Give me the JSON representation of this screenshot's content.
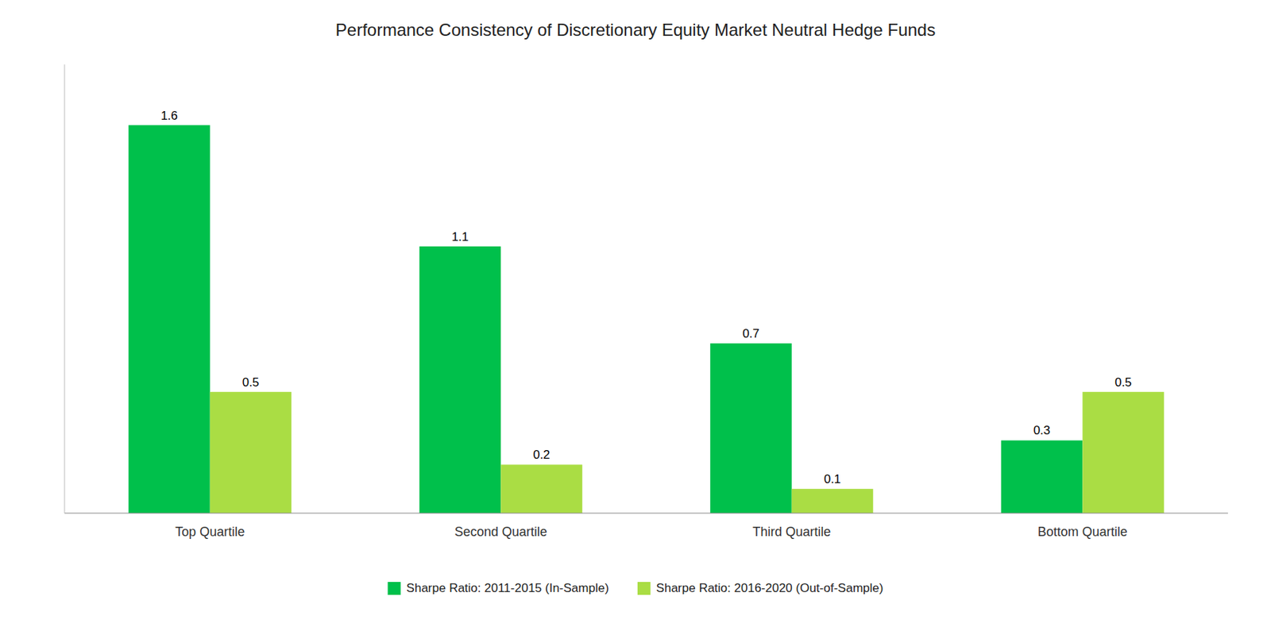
{
  "chart_data": {
    "type": "bar",
    "title": "Performance Consistency of Discretionary Equity Market Neutral Hedge Funds",
    "categories": [
      "Top Quartile",
      "Second Quartile",
      "Third Quartile",
      "Bottom Quartile"
    ],
    "series": [
      {
        "name": "Sharpe Ratio: 2011-2015 (In-Sample)",
        "color": "#00C04B",
        "values": [
          1.6,
          1.1,
          0.7,
          0.3
        ]
      },
      {
        "name": "Sharpe Ratio: 2016-2020 (Out-of-Sample)",
        "color": "#AADD44",
        "values": [
          0.5,
          0.2,
          0.1,
          0.5
        ]
      }
    ],
    "ylim": [
      0,
      1.85
    ],
    "yticks": [],
    "grid": false,
    "legend": "bottom",
    "data_labels": true,
    "tick_labels": "x"
  }
}
